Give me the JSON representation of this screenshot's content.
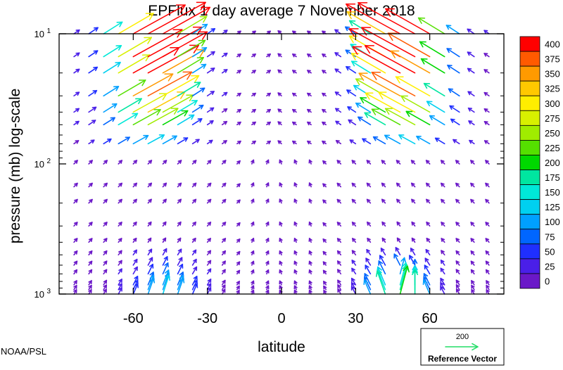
{
  "chart_data": {
    "type": "vector-field",
    "title": "EPFlux  1 day average  7 November 2018",
    "xlabel": "latitude",
    "ylabel": "pressure (mb)  log-scale",
    "xlim": [
      -90,
      90
    ],
    "ylim": [
      1000,
      10
    ],
    "y_scale": "log",
    "xticks": [
      {
        "value": -60,
        "label": "-60"
      },
      {
        "value": -30,
        "label": "-30"
      },
      {
        "value": 0,
        "label": "0"
      },
      {
        "value": 30,
        "label": "30"
      },
      {
        "value": 60,
        "label": "60"
      }
    ],
    "yticks": [
      {
        "value": 10,
        "base": "10",
        "exp": "1"
      },
      {
        "value": 100,
        "base": "10",
        "exp": "2"
      },
      {
        "value": 1000,
        "base": "10",
        "exp": "3"
      }
    ],
    "grid": false,
    "grid_latitudes": [
      -84,
      -78,
      -72,
      -66,
      -60,
      -54,
      -48,
      -42,
      -36,
      -30,
      -24,
      -18,
      -12,
      -6,
      0,
      6,
      12,
      18,
      24,
      30,
      36,
      42,
      48,
      54,
      60,
      66,
      72,
      78,
      84
    ],
    "grid_pressures": [
      10,
      15,
      20,
      30,
      40,
      50,
      70,
      100,
      150,
      200,
      300,
      400,
      500,
      600,
      700,
      850,
      925,
      1000
    ],
    "colorbar": {
      "levels": [
        400,
        375,
        350,
        325,
        300,
        275,
        250,
        225,
        200,
        175,
        150,
        125,
        100,
        75,
        50,
        25,
        0
      ],
      "colors": [
        "#ff0000",
        "#ff5a00",
        "#ff9a00",
        "#ffc800",
        "#ffee00",
        "#d8f000",
        "#a0ec00",
        "#55e000",
        "#00d800",
        "#00e6a0",
        "#00e8d8",
        "#00d0f0",
        "#00a0ff",
        "#0066ff",
        "#1f2fff",
        "#4a1fe8",
        "#6a18c8"
      ],
      "placement": "right"
    },
    "reference_vector": {
      "value": "200",
      "label": "Reference Vector",
      "color": "#22dd66"
    },
    "source_label": "NOAA/PSL"
  }
}
